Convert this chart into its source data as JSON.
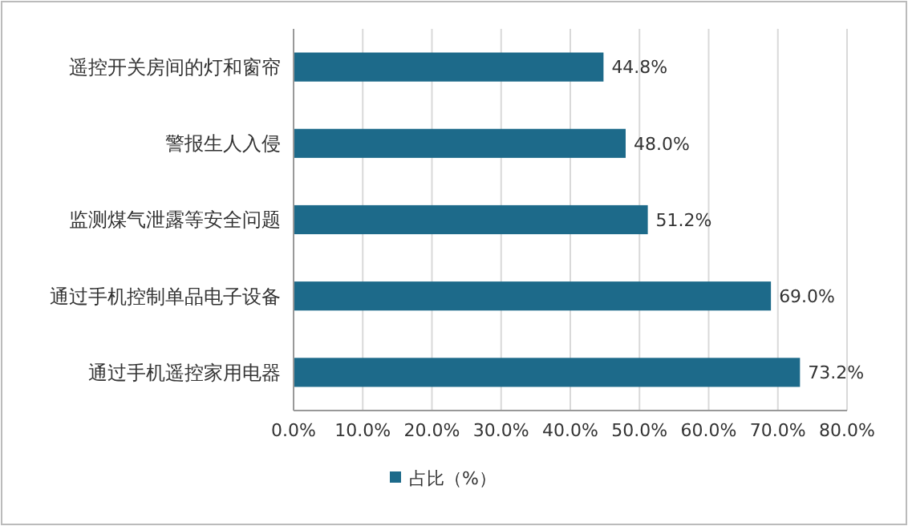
{
  "chart_data": {
    "type": "bar",
    "orientation": "horizontal",
    "categories": [
      "遥控开关房间的灯和窗帘",
      "警报生人入侵",
      "监测煤气泄露等安全问题",
      "通过手机控制单品电子设备",
      "通过手机遥控家用电器"
    ],
    "series": [
      {
        "name": "占比（%）",
        "color": "#1d6a8a",
        "values": [
          44.8,
          48.0,
          51.2,
          69.0,
          73.2
        ],
        "value_labels": [
          "44.8%",
          "48.0%",
          "51.2%",
          "69.0%",
          "73.2%"
        ]
      }
    ],
    "xlim": [
      0,
      80
    ],
    "xticks": [
      {
        "value": 0,
        "label": "0.0%"
      },
      {
        "value": 10,
        "label": "10.0%"
      },
      {
        "value": 20,
        "label": "20.0%"
      },
      {
        "value": 30,
        "label": "30.0%"
      },
      {
        "value": 40,
        "label": "40.0%"
      },
      {
        "value": 50,
        "label": "50.0%"
      },
      {
        "value": 60,
        "label": "60.0%"
      },
      {
        "value": 70,
        "label": "70.0%"
      },
      {
        "value": 80,
        "label": "80.0%"
      }
    ],
    "grid": "x",
    "legend": "bottom"
  }
}
